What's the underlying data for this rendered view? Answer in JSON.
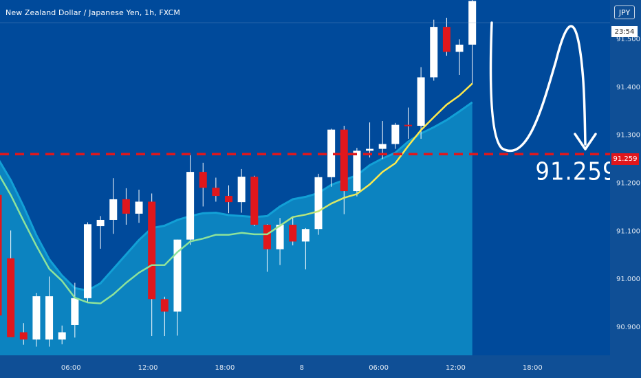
{
  "header": {
    "symbol_title": "New Zealand Dollar / Japanese Yen, 1h, FXCM",
    "currency": "JPY",
    "countdown": "23:54"
  },
  "colors": {
    "background": "#0f4f96",
    "chart_area": "#004a9b",
    "band_fill": "#0d8ac4",
    "band_edge": "#12a0d6",
    "bull_candle": "#ffffff",
    "bear_candle": "#e0171c",
    "wick": "#ffffff",
    "ma_line_early": "#8ee39a",
    "ma_line_late": "#ffe94a",
    "level_line": "#e0171c",
    "annotation": "#ffffff"
  },
  "chart_data": {
    "type": "candlestick",
    "title": "New Zealand Dollar / Japanese Yen, 1h, FXCM",
    "x_ticks": [
      {
        "label": "06:00",
        "index": 5.7
      },
      {
        "label": "12:00",
        "index": 11.7
      },
      {
        "label": "18:00",
        "index": 17.7
      },
      {
        "label": "8",
        "index": 23.7
      },
      {
        "label": "06:00",
        "index": 29.7
      },
      {
        "label": "12:00",
        "index": 35.7
      },
      {
        "label": "18:00",
        "index": 41.7
      }
    ],
    "y_ticks": [
      90.9,
      91.0,
      91.1,
      91.2,
      91.3,
      91.4,
      91.5
    ],
    "y_tick_labels": [
      "90.900",
      "91.000",
      "91.100",
      "91.200",
      "91.300",
      "91.400",
      "91.500"
    ],
    "ylim": [
      90.84,
      91.58
    ],
    "candles": [
      {
        "o": 91.174,
        "h": 91.174,
        "l": 90.923,
        "c": 90.923
      },
      {
        "o": 91.042,
        "h": 91.1,
        "l": 90.878,
        "c": 90.878
      },
      {
        "o": 90.888,
        "h": 90.907,
        "l": 90.862,
        "c": 90.873
      },
      {
        "o": 90.873,
        "h": 90.97,
        "l": 90.858,
        "c": 90.963
      },
      {
        "o": 90.873,
        "h": 91.004,
        "l": 90.858,
        "c": 90.963
      },
      {
        "o": 90.873,
        "h": 90.902,
        "l": 90.863,
        "c": 90.888
      },
      {
        "o": 90.903,
        "h": 90.991,
        "l": 90.877,
        "c": 90.959
      },
      {
        "o": 90.959,
        "h": 91.117,
        "l": 90.952,
        "c": 91.113
      },
      {
        "o": 91.109,
        "h": 91.13,
        "l": 91.062,
        "c": 91.122
      },
      {
        "o": 91.122,
        "h": 91.209,
        "l": 91.093,
        "c": 91.165
      },
      {
        "o": 91.165,
        "h": 91.188,
        "l": 91.112,
        "c": 91.135
      },
      {
        "o": 91.135,
        "h": 91.185,
        "l": 91.116,
        "c": 91.16
      },
      {
        "o": 91.16,
        "h": 91.177,
        "l": 90.88,
        "c": 90.957
      },
      {
        "o": 90.957,
        "h": 90.962,
        "l": 90.88,
        "c": 90.931
      },
      {
        "o": 90.931,
        "h": 91.081,
        "l": 90.881,
        "c": 91.081
      },
      {
        "o": 91.081,
        "h": 91.26,
        "l": 91.07,
        "c": 91.222
      },
      {
        "o": 91.222,
        "h": 91.241,
        "l": 91.15,
        "c": 91.189
      },
      {
        "o": 91.189,
        "h": 91.21,
        "l": 91.16,
        "c": 91.172
      },
      {
        "o": 91.172,
        "h": 91.194,
        "l": 91.136,
        "c": 91.159
      },
      {
        "o": 91.159,
        "h": 91.228,
        "l": 91.137,
        "c": 91.212
      },
      {
        "o": 91.212,
        "h": 91.214,
        "l": 91.109,
        "c": 91.112
      },
      {
        "o": 91.112,
        "h": 91.113,
        "l": 91.014,
        "c": 91.061
      },
      {
        "o": 91.061,
        "h": 91.126,
        "l": 91.028,
        "c": 91.112
      },
      {
        "o": 91.112,
        "h": 91.128,
        "l": 91.069,
        "c": 91.077
      },
      {
        "o": 91.077,
        "h": 91.105,
        "l": 91.019,
        "c": 91.103
      },
      {
        "o": 91.103,
        "h": 91.218,
        "l": 91.091,
        "c": 91.211
      },
      {
        "o": 91.211,
        "h": 91.312,
        "l": 91.191,
        "c": 91.31
      },
      {
        "o": 91.31,
        "h": 91.318,
        "l": 91.134,
        "c": 91.182
      },
      {
        "o": 91.182,
        "h": 91.272,
        "l": 91.171,
        "c": 91.266
      },
      {
        "o": 91.266,
        "h": 91.325,
        "l": 91.252,
        "c": 91.27
      },
      {
        "o": 91.27,
        "h": 91.328,
        "l": 91.249,
        "c": 91.28
      },
      {
        "o": 91.28,
        "h": 91.324,
        "l": 91.27,
        "c": 91.32
      },
      {
        "o": 91.32,
        "h": 91.356,
        "l": 91.291,
        "c": 91.318
      },
      {
        "o": 91.318,
        "h": 91.44,
        "l": 91.291,
        "c": 91.419
      },
      {
        "o": 91.419,
        "h": 91.539,
        "l": 91.412,
        "c": 91.524
      },
      {
        "o": 91.524,
        "h": 91.543,
        "l": 91.464,
        "c": 91.472
      },
      {
        "o": 91.472,
        "h": 91.498,
        "l": 91.424,
        "c": 91.487
      },
      {
        "o": 91.487,
        "h": 91.589,
        "l": 91.405,
        "c": 91.578
      }
    ],
    "moving_average": [
      91.22,
      91.174,
      91.12,
      91.068,
      91.02,
      90.995,
      90.96,
      90.95,
      90.948,
      90.967,
      90.991,
      91.012,
      91.028,
      91.028,
      91.055,
      91.077,
      91.083,
      91.091,
      91.091,
      91.095,
      91.092,
      91.092,
      91.11,
      91.128,
      91.133,
      91.14,
      91.156,
      91.168,
      91.176,
      91.196,
      91.222,
      91.24,
      91.276,
      91.309,
      91.336,
      91.362,
      91.381,
      91.406
    ],
    "band_upper": [
      91.25,
      91.205,
      91.15,
      91.09,
      91.04,
      91.006,
      90.98,
      90.975,
      90.99,
      91.02,
      91.05,
      91.08,
      91.105,
      91.11,
      91.122,
      91.13,
      91.136,
      91.137,
      91.132,
      91.13,
      91.128,
      91.13,
      91.15,
      91.165,
      91.17,
      91.178,
      91.195,
      91.205,
      91.215,
      91.236,
      91.25,
      91.262,
      91.285,
      91.302,
      91.315,
      91.33,
      91.348,
      91.367
    ],
    "horizontal_level": 91.259,
    "level_label": "91.259",
    "price_badge": "91.259",
    "projection": "pull back down to the 91.259 level"
  }
}
